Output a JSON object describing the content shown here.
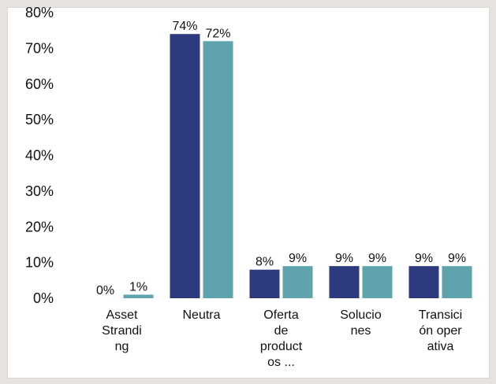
{
  "chart_data": {
    "type": "bar",
    "title": "",
    "xlabel": "",
    "ylabel": "",
    "ylim": [
      0,
      80
    ],
    "y_ticks": [
      "0%",
      "10%",
      "20%",
      "30%",
      "40%",
      "50%",
      "60%",
      "70%",
      "80%"
    ],
    "categories": [
      [
        "Asset",
        "Strandi",
        "ng"
      ],
      [
        "Neutra"
      ],
      [
        "Oferta",
        "de",
        "product",
        "os ..."
      ],
      [
        "Solucio",
        "nes"
      ],
      [
        "Transici",
        "ón oper",
        "ativa"
      ]
    ],
    "series": [
      {
        "values": [
          0,
          74,
          8,
          9,
          9
        ],
        "labels": [
          "0%",
          "74%",
          "8%",
          "9%",
          "9%"
        ],
        "color": "#2e3a7e"
      },
      {
        "values": [
          1,
          72,
          9,
          9,
          9
        ],
        "labels": [
          "1%",
          "72%",
          "9%",
          "9%",
          "9%"
        ],
        "color": "#5fa3ad"
      }
    ],
    "grid": false,
    "legend": "none"
  }
}
